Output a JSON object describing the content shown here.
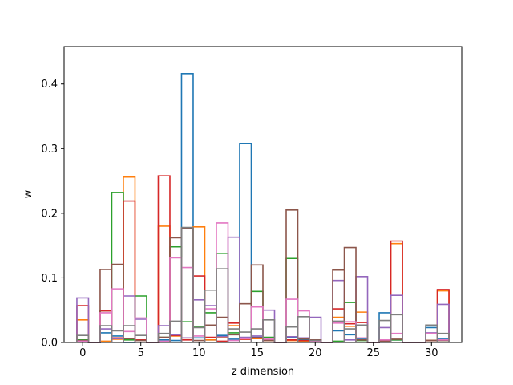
{
  "chart_data": {
    "type": "step",
    "xlabel": "z dimension",
    "ylabel": "w",
    "xlim": [
      -1.6,
      32.6
    ],
    "ylim": [
      0,
      0.458
    ],
    "xticks": [
      0,
      5,
      10,
      15,
      20,
      25,
      30
    ],
    "yticks": [
      0.0,
      0.1,
      0.2,
      0.3,
      0.4
    ],
    "ytick_labels": [
      "0.0",
      "0.1",
      "0.2",
      "0.3",
      "0.4"
    ],
    "x": [
      0,
      1,
      2,
      3,
      4,
      5,
      6,
      7,
      8,
      9,
      10,
      11,
      12,
      13,
      14,
      15,
      16,
      17,
      18,
      19,
      20,
      21,
      22,
      23,
      24,
      25,
      26,
      27,
      28,
      29,
      30,
      31
    ],
    "series": [
      {
        "color": "#1f77b4",
        "values": [
          0.004,
          0,
          0.015,
          0.01,
          0,
          0.004,
          0,
          0.004,
          0.003,
          0.416,
          0.007,
          0.004,
          0.011,
          0.005,
          0.308,
          0.008,
          0.004,
          0,
          0.008,
          0.004,
          0.004,
          0,
          0.018,
          0.012,
          0.005,
          0,
          0.046,
          0.004,
          0,
          0,
          0.023,
          0.005
        ]
      },
      {
        "color": "#ff7f0e",
        "values": [
          0.035,
          0,
          0.002,
          0.005,
          0.256,
          0.004,
          0,
          0.18,
          0.01,
          0.007,
          0.179,
          0.004,
          0.008,
          0.026,
          0.005,
          0.006,
          0.003,
          0,
          0.003,
          0.002,
          0.003,
          0,
          0.039,
          0.025,
          0.047,
          0,
          0.003,
          0.153,
          0,
          0,
          0.003,
          0.08
        ]
      },
      {
        "color": "#2ca02c",
        "values": [
          0.004,
          0,
          0.049,
          0.232,
          0.004,
          0.072,
          0,
          0.008,
          0.148,
          0.032,
          0.025,
          0.046,
          0.138,
          0.015,
          0.007,
          0.079,
          0.008,
          0,
          0.13,
          0.003,
          0.002,
          0,
          0.002,
          0.062,
          0.003,
          0,
          0.004,
          0.004,
          0,
          0,
          0.003,
          0.003
        ]
      },
      {
        "color": "#d62728",
        "values": [
          0.057,
          0,
          0.049,
          0.007,
          0.219,
          0.004,
          0,
          0.258,
          0.011,
          0.004,
          0.103,
          0.008,
          0.002,
          0.03,
          0.005,
          0.007,
          0.004,
          0,
          0.004,
          0.003,
          0.003,
          0,
          0.052,
          0.029,
          0.031,
          0,
          0.003,
          0.157,
          0,
          0,
          0.003,
          0.082
        ]
      },
      {
        "color": "#9467bd",
        "values": [
          0.069,
          0,
          0.021,
          0.006,
          0.072,
          0.036,
          0,
          0.026,
          0.012,
          0.007,
          0.066,
          0.057,
          0.009,
          0.163,
          0.008,
          0.01,
          0.05,
          0,
          0.009,
          0.007,
          0.039,
          0,
          0.096,
          0.004,
          0.102,
          0,
          0.023,
          0.073,
          0,
          0,
          0.015,
          0.059
        ]
      },
      {
        "color": "#8c564b",
        "values": [
          0.003,
          0,
          0.113,
          0.121,
          0.006,
          0.003,
          0,
          0.008,
          0.162,
          0.177,
          0.003,
          0.027,
          0.039,
          0.012,
          0.06,
          0.12,
          0.003,
          0,
          0.205,
          0.006,
          0.004,
          0,
          0.112,
          0.147,
          0.004,
          0,
          0.002,
          0.005,
          0,
          0,
          0.003,
          0.003
        ]
      },
      {
        "color": "#e377c2",
        "values": [
          0.002,
          0,
          0.046,
          0.083,
          0.017,
          0.038,
          0,
          0.002,
          0.131,
          0.116,
          0.01,
          0.052,
          0.185,
          0.003,
          0.006,
          0.055,
          0.005,
          0,
          0.067,
          0.049,
          0.002,
          0,
          0.03,
          0.032,
          0.007,
          0,
          0.004,
          0.014,
          0,
          0,
          0.014,
          0.004
        ]
      },
      {
        "color": "#7f7f7f",
        "values": [
          0.011,
          0,
          0.026,
          0.018,
          0.026,
          0.011,
          0,
          0.014,
          0.033,
          0.178,
          0.023,
          0.081,
          0.114,
          0.021,
          0.016,
          0.021,
          0.035,
          0,
          0.024,
          0.04,
          0.003,
          0,
          0.033,
          0.021,
          0.027,
          0,
          0.034,
          0.043,
          0,
          0,
          0.027,
          0.014
        ]
      }
    ]
  }
}
